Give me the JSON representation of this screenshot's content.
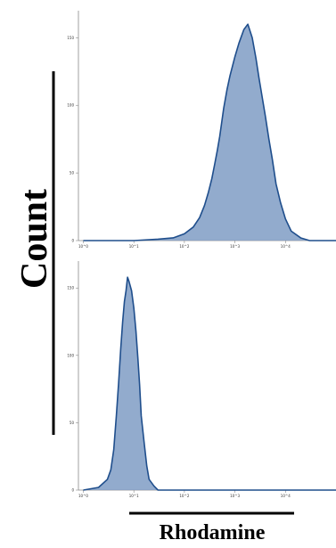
{
  "chart_data": [
    {
      "type": "area",
      "panel": "top",
      "xscale": "log",
      "xlim": [
        0.8,
        100000
      ],
      "ylim": [
        0,
        170
      ],
      "x_ticks": [
        "10^0",
        "10^1",
        "10^2",
        "10^3",
        "10^4"
      ],
      "y_ticks": [
        "0",
        "50",
        "100",
        "150"
      ],
      "color": "#1f4e8c",
      "fill": "#7f9cc4",
      "x": [
        1,
        10,
        30,
        60,
        100,
        150,
        200,
        250,
        300,
        350,
        400,
        450,
        500,
        550,
        600,
        700,
        800,
        1000,
        1200,
        1500,
        1800,
        2200,
        2600,
        3000,
        3500,
        4000,
        4700,
        5500,
        6500,
        8000,
        10000,
        13000,
        20000,
        30000,
        100000
      ],
      "y": [
        0,
        0,
        1,
        2,
        5,
        10,
        17,
        26,
        36,
        46,
        57,
        67,
        77,
        88,
        98,
        112,
        122,
        136,
        146,
        156,
        160,
        150,
        135,
        120,
        105,
        92,
        75,
        60,
        42,
        28,
        16,
        7,
        2,
        0,
        0
      ]
    },
    {
      "type": "area",
      "panel": "bottom",
      "xscale": "log",
      "xlim": [
        0.8,
        100000
      ],
      "ylim": [
        0,
        170
      ],
      "x_ticks": [
        "10^0",
        "10^1",
        "10^2",
        "10^3",
        "10^4"
      ],
      "y_ticks": [
        "0",
        "50",
        "100",
        "150"
      ],
      "color": "#1f4e8c",
      "fill": "#7f9cc4",
      "x": [
        1,
        2,
        3,
        3.5,
        4,
        4.5,
        5,
        5.5,
        6,
        6.5,
        7,
        7.5,
        8,
        9,
        10,
        11,
        12,
        13,
        14,
        16,
        18,
        20,
        25,
        30,
        100,
        100000
      ],
      "y": [
        0,
        2,
        8,
        15,
        30,
        55,
        80,
        105,
        125,
        140,
        148,
        158,
        155,
        148,
        135,
        118,
        98,
        78,
        55,
        35,
        18,
        8,
        3,
        0,
        0,
        0
      ]
    }
  ],
  "labels": {
    "ylabel": "Count",
    "xlabel": "Rhodamine"
  }
}
